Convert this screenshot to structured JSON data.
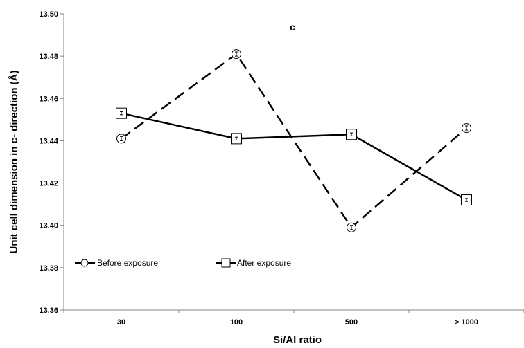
{
  "chart_data": {
    "type": "line",
    "title": "c",
    "xlabel": "Si/Al ratio",
    "ylabel": "Unit cell dimension in c- direction (Å)",
    "categories": [
      "30",
      "100",
      "500",
      "> 1000"
    ],
    "ylim": [
      13.36,
      13.5
    ],
    "yticks": [
      "13.36",
      "13.38",
      "13.40",
      "13.42",
      "13.44",
      "13.46",
      "13.48",
      "13.50"
    ],
    "grid": false,
    "legend_position": "bottom-left",
    "series": [
      {
        "name": "Before exposure",
        "values": [
          13.441,
          13.481,
          13.399,
          13.446
        ],
        "errors": [
          0.001,
          0.001,
          0.001,
          0.001
        ],
        "marker": "circle",
        "line_style": "dashed",
        "color": "#000000"
      },
      {
        "name": "After exposure",
        "values": [
          13.453,
          13.441,
          13.443,
          13.412
        ],
        "errors": [
          0.0007,
          0.0007,
          0.0007,
          0.0007
        ],
        "marker": "square",
        "line_style": "solid",
        "color": "#000000"
      }
    ]
  }
}
